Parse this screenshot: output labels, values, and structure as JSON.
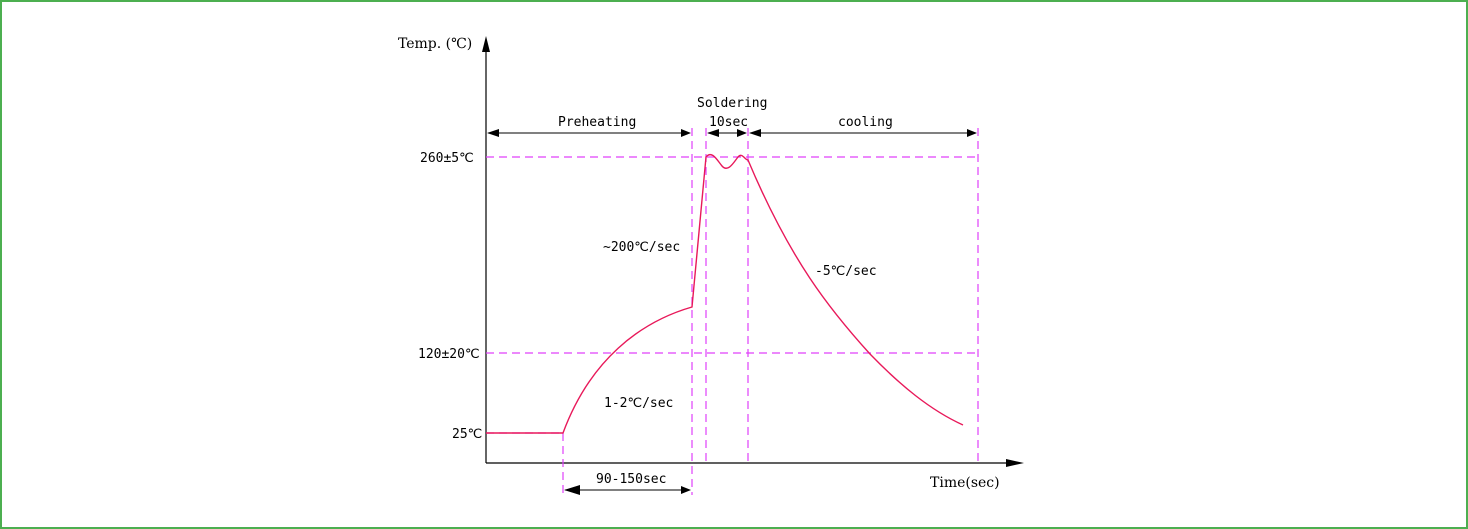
{
  "colors": {
    "frame": "#4caf50",
    "guides": "#e040fb",
    "curve": "#e8195a",
    "axis": "#000000"
  },
  "axes": {
    "y_label": "Temp. (℃)",
    "x_label": "Time(sec)"
  },
  "y_ticks": [
    "260±5℃",
    "120±20℃",
    "25℃"
  ],
  "phases": {
    "preheating": "Preheating",
    "soldering": "Soldering",
    "soldering_time": "10sec",
    "cooling": "cooling"
  },
  "rates": {
    "ramp_up": "~200℃/sec",
    "cool_down": "-5℃/sec",
    "preheat": "1-2℃/sec"
  },
  "preheat_duration": "90-150sec"
}
